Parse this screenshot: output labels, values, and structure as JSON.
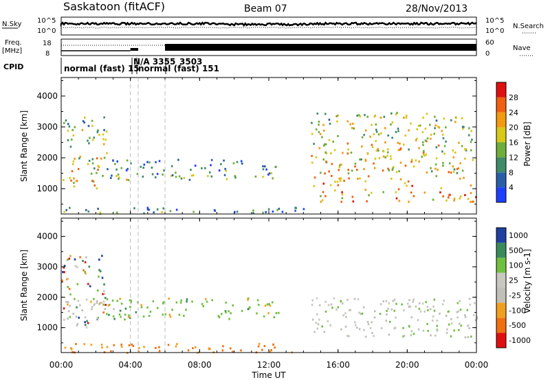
{
  "header": {
    "station": "Saskatoon (fitACF)",
    "beam": "Beam 07",
    "date": "28/Nov/2013"
  },
  "summary": {
    "nsky_label": "N.Sky",
    "nsky_ticks": [
      "10^5",
      "10^0"
    ],
    "nsearch_label": "N.Search",
    "freq_label_1": "Freq.",
    "freq_label_2": "[MHz]",
    "freq_ticks": [
      "18",
      "8"
    ],
    "nave_label": "Nave",
    "nave_ticks": [
      "60",
      "0"
    ],
    "right_ticks_nsky": [
      "10^5",
      "10^0"
    ],
    "cpid_label": "CPID",
    "cpid_segments": [
      "normal (fast) 15",
      "N/A 3355",
      "3503",
      "normal (fast) 151"
    ]
  },
  "axes": {
    "xlabel": "Time UT",
    "ylabel": "Slant Range [km]",
    "x_ticks": [
      "00:00",
      "04:00",
      "08:00",
      "12:00",
      "16:00",
      "20:00",
      "00:00"
    ],
    "y_ticks": [
      "1000",
      "2000",
      "3000",
      "4000"
    ]
  },
  "chart_data": [
    {
      "type": "heatmap",
      "title": "",
      "xlabel": "Time UT",
      "ylabel": "Slant Range [km]",
      "xlim": [
        0,
        24
      ],
      "ylim": [
        180,
        4600
      ],
      "colorbar_label": "Power [dB]",
      "colorbar_ticks": [
        4,
        8,
        12,
        16,
        20,
        24,
        28
      ],
      "colorbar_range": [
        0,
        30
      ],
      "colors": [
        "#1f3fff",
        "#2a5fa8",
        "#3f8b6a",
        "#6fae3a",
        "#d8c81a",
        "#f29a10",
        "#f06010",
        "#e01010"
      ],
      "regions": [
        {
          "name": "early scatter",
          "t": [
            0,
            2.6
          ],
          "range": [
            1000,
            3400
          ],
          "level": 20
        },
        {
          "name": "E-region band",
          "t": [
            0,
            14
          ],
          "range": [
            220,
            420
          ],
          "level": 10
        },
        {
          "name": "mid scatter",
          "t": [
            2.6,
            12.8
          ],
          "range": [
            1300,
            2000
          ],
          "level": 12
        },
        {
          "name": "evening scatter",
          "t": [
            14.4,
            24
          ],
          "range": [
            600,
            3500
          ],
          "level": 22
        }
      ]
    },
    {
      "type": "heatmap",
      "title": "",
      "xlabel": "Time UT",
      "ylabel": "Slant Range [km]",
      "xlim": [
        0,
        24
      ],
      "ylim": [
        180,
        4600
      ],
      "colorbar_label": "Velocity [m s-1]",
      "colorbar_ticks": [
        "1000",
        "500",
        "100",
        "25",
        "-25",
        "-100",
        "-500",
        "-1000"
      ],
      "colors": [
        "#2040a0",
        "#3a8a5a",
        "#70c040",
        "#c8c8c0",
        "#c0c0b8",
        "#f0a020",
        "#f07010",
        "#e01010"
      ],
      "regions": [
        {
          "name": "early scatter",
          "t": [
            0,
            2.6
          ],
          "range": [
            1000,
            3400
          ],
          "velocity": "mixed"
        },
        {
          "name": "ground scatter",
          "t": [
            0,
            3.0
          ],
          "range": [
            1300,
            2000
          ],
          "velocity": "low"
        },
        {
          "name": "E-region band",
          "t": [
            0,
            14
          ],
          "range": [
            200,
            500
          ],
          "velocity": "negative"
        },
        {
          "name": "mid scatter",
          "t": [
            2.6,
            12.8
          ],
          "range": [
            1300,
            2000
          ],
          "velocity": "positive"
        },
        {
          "name": "evening ground scatter",
          "t": [
            14.4,
            24
          ],
          "range": [
            700,
            2000
          ],
          "velocity": "low"
        }
      ]
    }
  ]
}
